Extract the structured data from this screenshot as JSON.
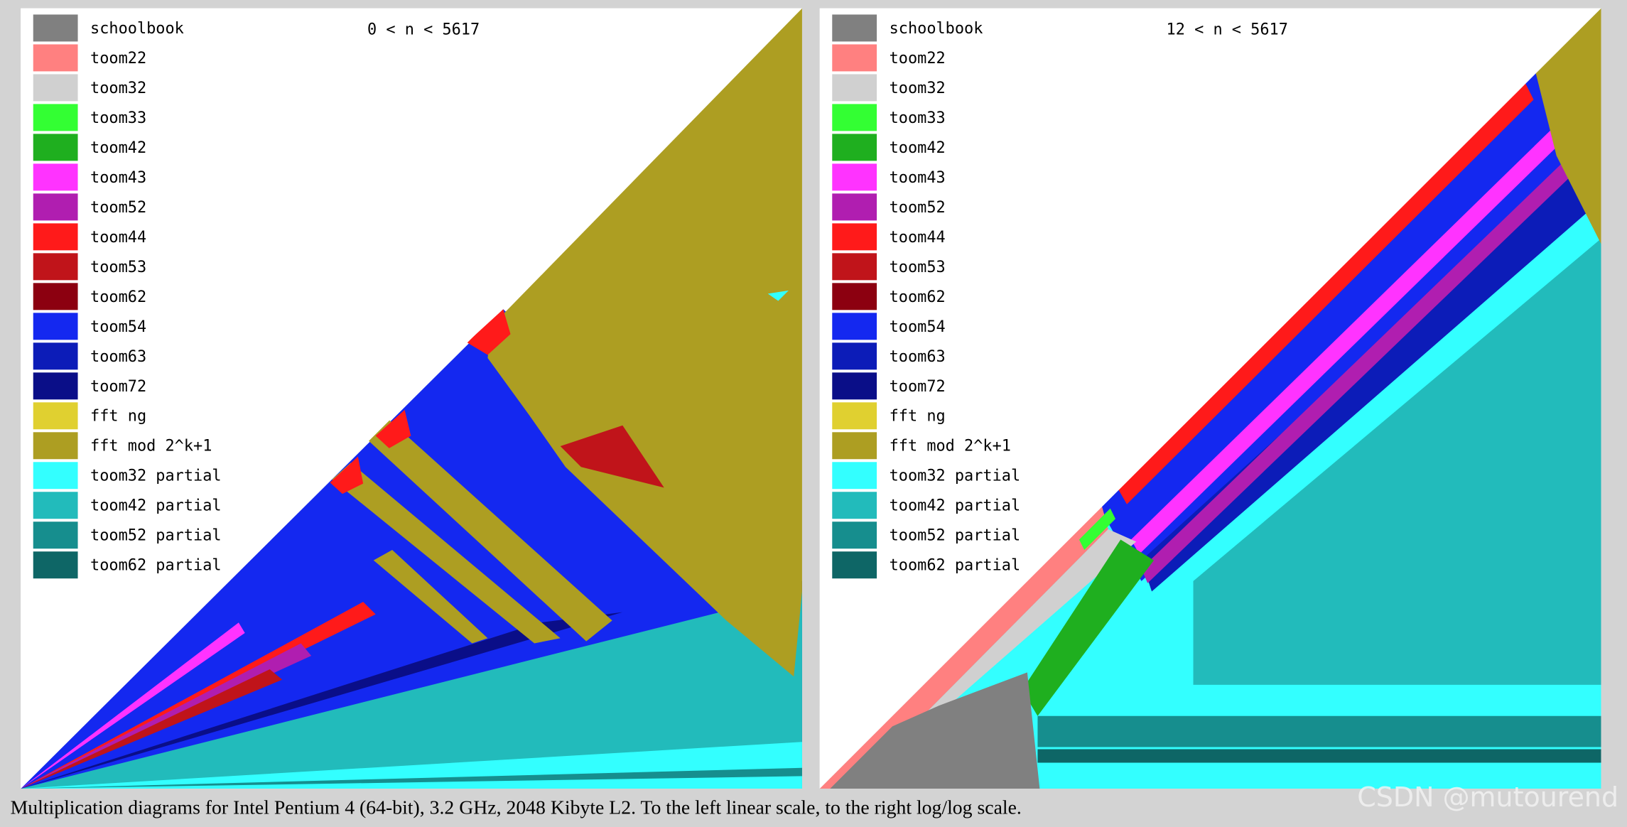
{
  "panels": [
    {
      "range_label": "0 < n < 5617",
      "legend": [
        {
          "label": "schoolbook",
          "color": "#808080"
        },
        {
          "label": "toom22",
          "color": "#ff8080"
        },
        {
          "label": "toom32",
          "color": "#d0d0d0"
        },
        {
          "label": "toom33",
          "color": "#33ff33"
        },
        {
          "label": "toom42",
          "color": "#1faf1f"
        },
        {
          "label": "toom43",
          "color": "#ff33ff"
        },
        {
          "label": "toom52",
          "color": "#b01eb0"
        },
        {
          "label": "toom44",
          "color": "#ff1a1a"
        },
        {
          "label": "toom53",
          "color": "#c0141a"
        },
        {
          "label": "toom62",
          "color": "#8c0010"
        },
        {
          "label": "toom54",
          "color": "#1428f0"
        },
        {
          "label": "toom63",
          "color": "#0c1cb8"
        },
        {
          "label": "toom72",
          "color": "#0a0e88"
        },
        {
          "label": "fft ng",
          "color": "#e0d030"
        },
        {
          "label": "fft mod 2^k+1",
          "color": "#ad9e22"
        },
        {
          "label": "toom32 partial",
          "color": "#33ffff"
        },
        {
          "label": "toom42 partial",
          "color": "#22bbbb"
        },
        {
          "label": "toom52 partial",
          "color": "#168e8e"
        },
        {
          "label": "toom62 partial",
          "color": "#0e6666"
        }
      ]
    },
    {
      "range_label": "12 < n < 5617",
      "legend": [
        {
          "label": "schoolbook",
          "color": "#808080"
        },
        {
          "label": "toom22",
          "color": "#ff8080"
        },
        {
          "label": "toom32",
          "color": "#d0d0d0"
        },
        {
          "label": "toom33",
          "color": "#33ff33"
        },
        {
          "label": "toom42",
          "color": "#1faf1f"
        },
        {
          "label": "toom43",
          "color": "#ff33ff"
        },
        {
          "label": "toom52",
          "color": "#b01eb0"
        },
        {
          "label": "toom44",
          "color": "#ff1a1a"
        },
        {
          "label": "toom53",
          "color": "#c0141a"
        },
        {
          "label": "toom62",
          "color": "#8c0010"
        },
        {
          "label": "toom54",
          "color": "#1428f0"
        },
        {
          "label": "toom63",
          "color": "#0c1cb8"
        },
        {
          "label": "toom72",
          "color": "#0a0e88"
        },
        {
          "label": "fft ng",
          "color": "#e0d030"
        },
        {
          "label": "fft mod 2^k+1",
          "color": "#ad9e22"
        },
        {
          "label": "toom32 partial",
          "color": "#33ffff"
        },
        {
          "label": "toom42 partial",
          "color": "#22bbbb"
        },
        {
          "label": "toom52 partial",
          "color": "#168e8e"
        },
        {
          "label": "toom62 partial",
          "color": "#0e6666"
        }
      ]
    }
  ],
  "caption": "Multiplication diagrams for Intel Pentium 4 (64-bit), 3.2 GHz, 2048 Kibyte L2. To the left linear scale, to the right log/log scale.",
  "watermark": "CSDN @mutourend"
}
